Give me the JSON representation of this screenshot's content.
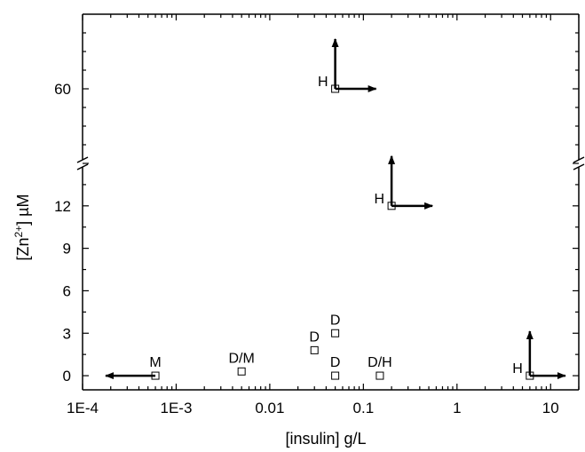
{
  "chart_data": {
    "type": "scatter",
    "title": "",
    "xlabel": "[insulin] g/L",
    "ylabel_parts": {
      "pre": "[Zn",
      "sup": "2+",
      "post": "] µM"
    },
    "x_scale": "log",
    "xlim": [
      0.0001,
      20
    ],
    "x_ticks": [
      {
        "value": 0.0001,
        "label": "1E-4"
      },
      {
        "value": 0.001,
        "label": "1E-3"
      },
      {
        "value": 0.01,
        "label": "0.01"
      },
      {
        "value": 0.1,
        "label": "0.1"
      },
      {
        "value": 1,
        "label": "1"
      },
      {
        "value": 10,
        "label": "10"
      }
    ],
    "y_axis_break": {
      "lower_range": [
        -1,
        15
      ],
      "upper_range": [
        40,
        80
      ]
    },
    "y_ticks": [
      {
        "value": 0,
        "label": "0"
      },
      {
        "value": 3,
        "label": "3"
      },
      {
        "value": 6,
        "label": "6"
      },
      {
        "value": 9,
        "label": "9"
      },
      {
        "value": 12,
        "label": "12"
      },
      {
        "value": 60,
        "label": "60"
      }
    ],
    "grid": false,
    "points": [
      {
        "x": 0.0006,
        "y": 0,
        "label": "M",
        "arrows": [
          "left"
        ]
      },
      {
        "x": 0.005,
        "y": 0.3,
        "label": "D/M",
        "arrows": []
      },
      {
        "x": 0.03,
        "y": 1.8,
        "label": "D",
        "arrows": []
      },
      {
        "x": 0.05,
        "y": 3,
        "label": "D",
        "arrows": []
      },
      {
        "x": 0.05,
        "y": 0,
        "label": "D",
        "arrows": []
      },
      {
        "x": 0.15,
        "y": 0,
        "label": "D/H",
        "arrows": []
      },
      {
        "x": 6,
        "y": 0,
        "label": "H",
        "arrows": [
          "up",
          "right"
        ]
      },
      {
        "x": 0.2,
        "y": 12,
        "label": "H",
        "arrows": [
          "up",
          "right"
        ]
      },
      {
        "x": 0.05,
        "y": 60,
        "label": "H",
        "arrows": [
          "up",
          "right"
        ]
      }
    ]
  }
}
